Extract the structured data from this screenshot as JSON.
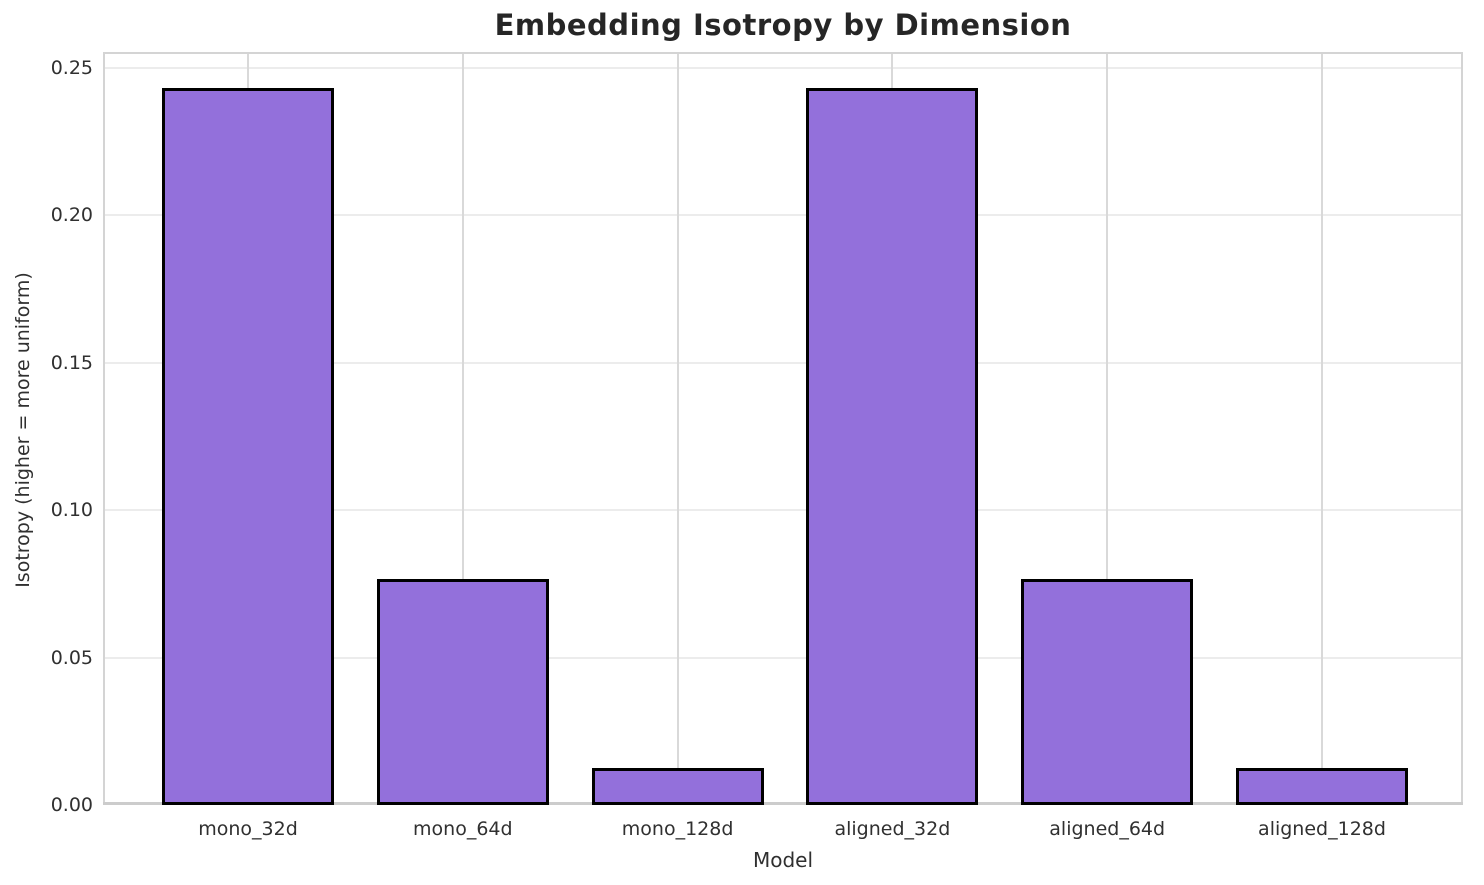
{
  "chart_data": {
    "type": "bar",
    "title": "Embedding Isotropy by Dimension",
    "xlabel": "Model",
    "ylabel": "Isotropy (higher = more uniform)",
    "categories": [
      "mono_32d",
      "mono_64d",
      "mono_128d",
      "aligned_32d",
      "aligned_64d",
      "aligned_128d"
    ],
    "values": [
      0.2433,
      0.0767,
      0.0126,
      0.2433,
      0.0767,
      0.0126
    ],
    "yticks": [
      0.0,
      0.05,
      0.1,
      0.15,
      0.2,
      0.25
    ],
    "ytick_labels": [
      "0.00",
      "0.05",
      "0.10",
      "0.15",
      "0.20",
      "0.25"
    ],
    "ylim": [
      0,
      0.2554
    ],
    "grid": true,
    "legend": false,
    "colors": {
      "bar_fill": "#9370DB",
      "bar_edge": "#000000",
      "grid_h": "#ececec",
      "grid_v": "#d9d9d9",
      "spine": "#d4d4d4",
      "text": "#303030",
      "title": "#262626",
      "background": "#ffffff"
    }
  }
}
